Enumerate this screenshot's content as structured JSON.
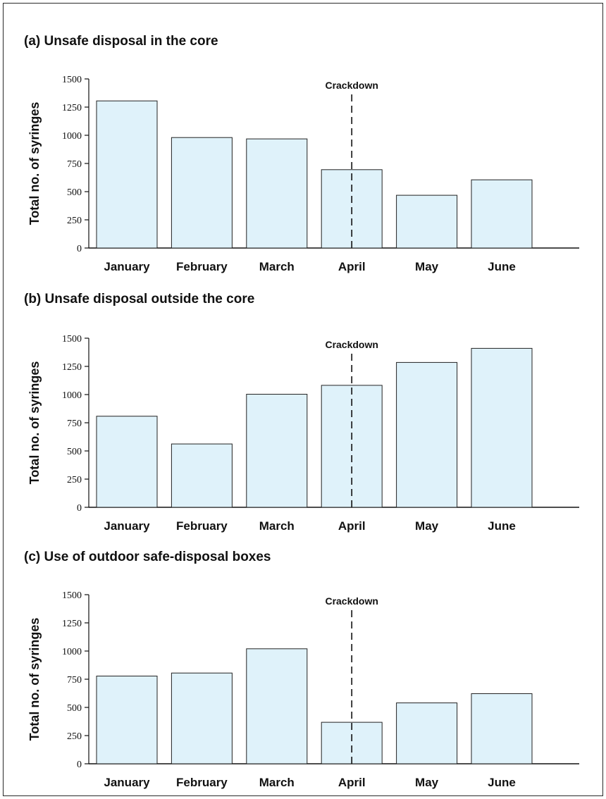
{
  "chart_data": [
    {
      "type": "bar",
      "title": "(a) Unsafe disposal in the core",
      "ylabel": "Total no. of syringes",
      "xlabel": "",
      "categories": [
        "January",
        "February",
        "March",
        "April",
        "May",
        "June"
      ],
      "values": [
        1305,
        980,
        968,
        695,
        468,
        605
      ],
      "ylim": [
        0,
        1500
      ],
      "yticks": [
        0,
        250,
        500,
        750,
        1000,
        1250,
        1500
      ],
      "annotation": {
        "label": "Crackdown",
        "category": "April"
      },
      "bar_color": "#dff2fa",
      "grid": false
    },
    {
      "type": "bar",
      "title": "(b) Unsafe disposal outside the core",
      "ylabel": "Total no. of syringes",
      "xlabel": "",
      "categories": [
        "January",
        "February",
        "March",
        "April",
        "May",
        "June"
      ],
      "values": [
        808,
        562,
        1003,
        1082,
        1285,
        1410
      ],
      "ylim": [
        0,
        1500
      ],
      "yticks": [
        0,
        250,
        500,
        750,
        1000,
        1250,
        1500
      ],
      "annotation": {
        "label": "Crackdown",
        "category": "April"
      },
      "bar_color": "#dff2fa",
      "grid": false
    },
    {
      "type": "bar",
      "title": "(c) Use of outdoor safe-disposal boxes",
      "ylabel": "Total no. of syringes",
      "xlabel": "",
      "categories": [
        "January",
        "February",
        "March",
        "April",
        "May",
        "June"
      ],
      "values": [
        778,
        805,
        1020,
        368,
        540,
        622
      ],
      "ylim": [
        0,
        1500
      ],
      "yticks": [
        0,
        250,
        500,
        750,
        1000,
        1250,
        1500
      ],
      "annotation": {
        "label": "Crackdown",
        "category": "April"
      },
      "bar_color": "#dff2fa",
      "grid": false
    }
  ]
}
